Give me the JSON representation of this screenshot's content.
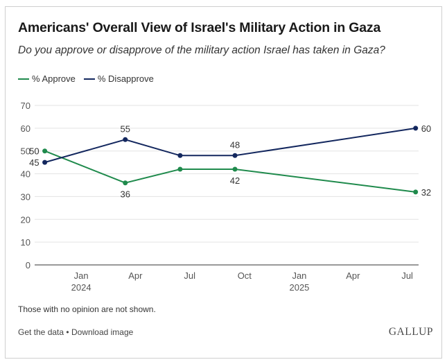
{
  "title": "Americans' Overall View of Israel's Military Action in Gaza",
  "subtitle": "Do you approve or disapprove of the military action Israel has taken in Gaza?",
  "legend": {
    "approve": "% Approve",
    "disapprove": "% Disapprove"
  },
  "colors": {
    "approve": "#1f8a4c",
    "disapprove": "#13275e",
    "grid": "#e3e3e3",
    "axis": "#333333"
  },
  "note": "Those with no opinion are not shown.",
  "footer": {
    "get_data": "Get the data",
    "separator": "•",
    "download": "Download image"
  },
  "brand": "GALLUP",
  "chart_data": {
    "type": "line",
    "title": "Americans' Overall View of Israel's Military Action in Gaza",
    "ylim": [
      0,
      70
    ],
    "yticks": [
      0,
      10,
      20,
      30,
      40,
      50,
      60,
      70
    ],
    "xlim": [
      "2023-10-15",
      "2025-07-20"
    ],
    "xticks": [
      {
        "date": "2024-01-01",
        "label": "Jan",
        "sublabel": "2024"
      },
      {
        "date": "2024-04-01",
        "label": "Apr",
        "sublabel": ""
      },
      {
        "date": "2024-07-01",
        "label": "Jul",
        "sublabel": ""
      },
      {
        "date": "2024-10-01",
        "label": "Oct",
        "sublabel": ""
      },
      {
        "date": "2025-01-01",
        "label": "Jan",
        "sublabel": "2025"
      },
      {
        "date": "2025-04-01",
        "label": "Apr",
        "sublabel": ""
      },
      {
        "date": "2025-07-01",
        "label": "Jul",
        "sublabel": ""
      }
    ],
    "series": [
      {
        "name": "% Approve",
        "key": "approve",
        "points": [
          {
            "date": "2023-11-01",
            "value": 50,
            "label": "50",
            "label_pos": "left"
          },
          {
            "date": "2024-03-15",
            "value": 36,
            "label": "36",
            "label_pos": "below"
          },
          {
            "date": "2024-06-15",
            "value": 42,
            "label": "",
            "label_pos": "none"
          },
          {
            "date": "2024-09-15",
            "value": 42,
            "label": "42",
            "label_pos": "below"
          },
          {
            "date": "2025-07-15",
            "value": 32,
            "label": "32",
            "label_pos": "right"
          }
        ]
      },
      {
        "name": "% Disapprove",
        "key": "disapprove",
        "points": [
          {
            "date": "2023-11-01",
            "value": 45,
            "label": "45",
            "label_pos": "left"
          },
          {
            "date": "2024-03-15",
            "value": 55,
            "label": "55",
            "label_pos": "above"
          },
          {
            "date": "2024-06-15",
            "value": 48,
            "label": "",
            "label_pos": "none"
          },
          {
            "date": "2024-09-15",
            "value": 48,
            "label": "48",
            "label_pos": "above"
          },
          {
            "date": "2025-07-15",
            "value": 60,
            "label": "60",
            "label_pos": "right"
          }
        ]
      }
    ]
  }
}
